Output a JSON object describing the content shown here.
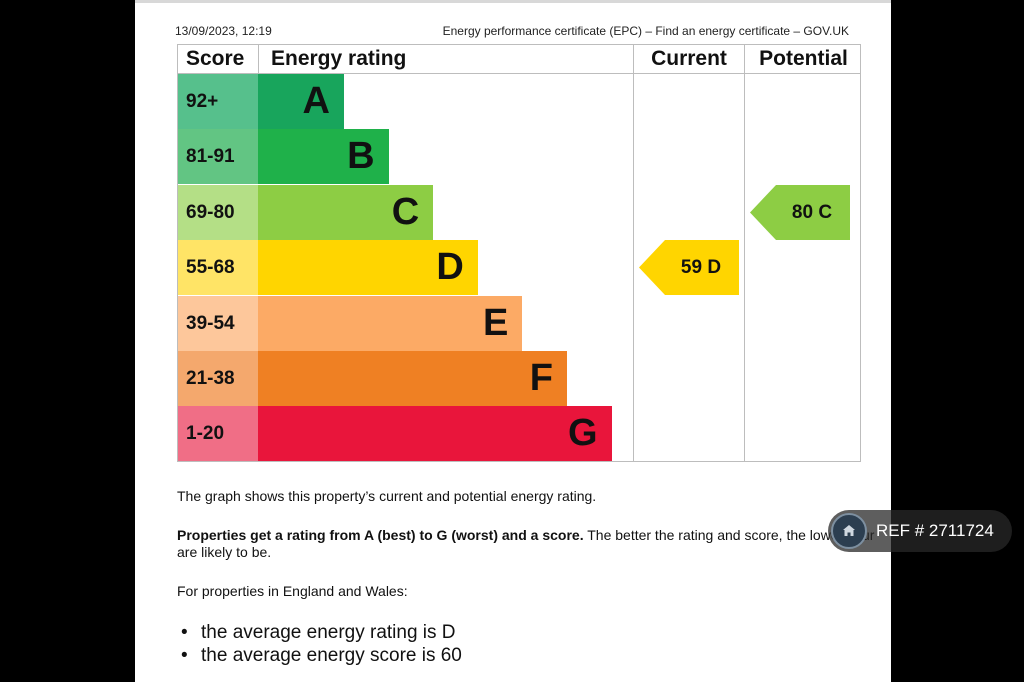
{
  "header": {
    "datetime": "13/09/2023, 12:19",
    "source": "Energy performance certificate (EPC) – Find an energy certificate – GOV.UK"
  },
  "table": {
    "col_score": "Score",
    "col_rating": "Energy rating",
    "col_current": "Current",
    "col_potential": "Potential",
    "bands": [
      {
        "score": "92+",
        "letter": "A",
        "color": "#18a55c",
        "score_bg": "#56c08c"
      },
      {
        "score": "81-91",
        "letter": "B",
        "color": "#1fb14a",
        "score_bg": "#62c583"
      },
      {
        "score": "69-80",
        "letter": "C",
        "color": "#8dcd44",
        "score_bg": "#b4df86"
      },
      {
        "score": "55-68",
        "letter": "D",
        "color": "#ffd500",
        "score_bg": "#ffe466"
      },
      {
        "score": "39-54",
        "letter": "E",
        "color": "#fcaa65",
        "score_bg": "#fdc79b"
      },
      {
        "score": "21-38",
        "letter": "F",
        "color": "#ef8023",
        "score_bg": "#f4a86d"
      },
      {
        "score": "1-20",
        "letter": "G",
        "color": "#e9153b",
        "score_bg": "#f06e86"
      }
    ],
    "current": {
      "label": "59 D",
      "band": "D",
      "color": "#ffd500"
    },
    "potential": {
      "label": "80 C",
      "band": "C",
      "color": "#8dcd44"
    }
  },
  "text": {
    "intro": "The graph shows this property’s current and potential energy rating.",
    "bold": "Properties get a rating from A (best) to G (worst) and a score.",
    "rest_line1": " The better the rating and score, the lower your",
    "rest_line2": "are likely to be.",
    "region": "For properties in England and Wales:",
    "bullets": [
      "the average energy rating is D",
      "the average energy score is 60"
    ]
  },
  "overlay": {
    "ref": "REF # 2711724",
    "icon": "home-icon"
  }
}
